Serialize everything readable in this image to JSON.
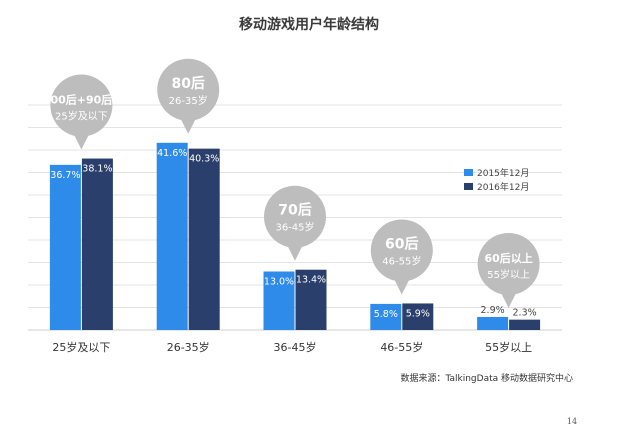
{
  "chart_data": {
    "type": "bar",
    "title": "移动游戏用户年龄结构",
    "categories": [
      "25岁及以下",
      "26-35岁",
      "36-45岁",
      "46-55岁",
      "55岁以上"
    ],
    "series": [
      {
        "name": "2015年12月",
        "values": [
          36.7,
          41.6,
          13.0,
          5.8,
          2.9
        ],
        "labels": [
          "36.7%",
          "41.6%",
          "13.0%",
          "5.8%",
          "2.9%"
        ],
        "color": "#2e8bea"
      },
      {
        "name": "2016年12月",
        "values": [
          38.1,
          40.3,
          13.4,
          5.9,
          2.3
        ],
        "labels": [
          "38.1%",
          "40.3%",
          "13.4%",
          "5.9%",
          "2.3%"
        ],
        "color": "#2b3f6c"
      }
    ],
    "ylim": [
      0,
      50
    ],
    "grid": true,
    "legend": "right",
    "annotations": [
      {
        "main": "00后+90后",
        "sub": "25岁及以下"
      },
      {
        "main": "80后",
        "sub": "26-35岁"
      },
      {
        "main": "70后",
        "sub": "36-45岁"
      },
      {
        "main": "60后",
        "sub": "46-55岁"
      },
      {
        "main": "60后以上",
        "sub": "55岁以上"
      }
    ]
  },
  "source": "数据来源：TalkingData 移动数据研究中心",
  "page_number": "14",
  "colors": {
    "bubble": "#bdbdbd",
    "grid": "#e3e3e3",
    "axis": "#cccccc"
  }
}
